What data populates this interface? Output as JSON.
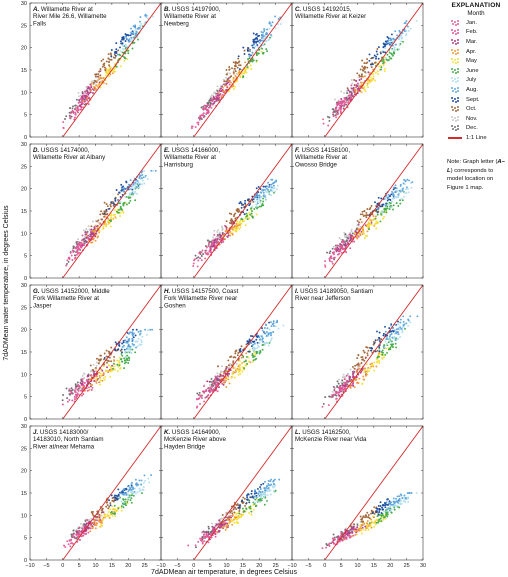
{
  "legend": {
    "heading": "EXPLANATION",
    "subheading": "Month",
    "months": [
      {
        "label": "Jan.",
        "color": "#e8609a"
      },
      {
        "label": "Feb.",
        "color": "#e2559a"
      },
      {
        "label": "Mar.",
        "color": "#b0418a"
      },
      {
        "label": "Apr.",
        "color": "#f29a3a"
      },
      {
        "label": "May",
        "color": "#f5e03a"
      },
      {
        "label": "June",
        "color": "#46ad4a"
      },
      {
        "label": "July",
        "color": "#b3dff2"
      },
      {
        "label": "Aug.",
        "color": "#62a8dc"
      },
      {
        "label": "Sept.",
        "color": "#1f4fa0"
      },
      {
        "label": "Oct.",
        "color": "#a56a3c"
      },
      {
        "label": "Nov.",
        "color": "#c9c9c9"
      },
      {
        "label": "Dec.",
        "color": "#6f6f6f"
      }
    ],
    "line_label": "1:1 Line",
    "line_color": "#d42a2a"
  },
  "note": {
    "prefix": "Note: Graph letter (",
    "letters": "A–L",
    "suffix": ") corresponds to model location on Figure 1 map."
  },
  "axes": {
    "xlabel": "7dADMean air temperature, in degrees Celsius",
    "ylabel": "7dADMean water temperature, in degrees Celsius",
    "x_ticks": [
      "−10",
      "−5",
      "0",
      "5",
      "10",
      "15",
      "20",
      "25"
    ],
    "x_ticks_last": [
      "−10",
      "−5",
      "0",
      "5",
      "10",
      "15",
      "20",
      "25",
      "30"
    ],
    "y_ticks": [
      "0",
      "5",
      "10",
      "15",
      "20",
      "25",
      "30"
    ]
  },
  "chart_data": {
    "type": "scatter",
    "xlim": [
      -10,
      30
    ],
    "ylim": [
      0,
      30
    ],
    "reference_line": "1:1",
    "panels": [
      {
        "letter": "A.",
        "title": [
          " Willamette River at",
          "River Mile 26.6, Willamette",
          "Falls"
        ],
        "fit": {
          "a": 3.0,
          "b": 0.86,
          "spread": 1.6
        },
        "y_range": [
          2,
          28
        ]
      },
      {
        "letter": "B.",
        "title": [
          " USGS 14197900,",
          "Willamette River at",
          "Newberg"
        ],
        "fit": {
          "a": 3.2,
          "b": 0.82,
          "spread": 1.7
        },
        "y_range": [
          2,
          27
        ]
      },
      {
        "letter": "C.",
        "title": [
          " USGS 14192015,",
          "Willamette River at Keizer"
        ],
        "fit": {
          "a": 3.4,
          "b": 0.78,
          "spread": 1.8
        },
        "y_range": [
          2,
          26
        ]
      },
      {
        "letter": "D.",
        "title": [
          " USGS 14174000,",
          "Willamette River at Albany"
        ],
        "fit": {
          "a": 3.6,
          "b": 0.72,
          "spread": 1.7
        },
        "y_range": [
          2,
          24
        ]
      },
      {
        "letter": "E.",
        "title": [
          " USGS 14166000,",
          "Willamette River at",
          "Harrisburg"
        ],
        "fit": {
          "a": 3.8,
          "b": 0.65,
          "spread": 1.6
        },
        "y_range": [
          2,
          22
        ]
      },
      {
        "letter": "F.",
        "title": [
          " USGS 14158100,",
          "Willamette River at",
          "Owosso Bridge"
        ],
        "fit": {
          "a": 4.0,
          "b": 0.62,
          "spread": 1.6
        },
        "y_range": [
          2,
          22
        ]
      },
      {
        "letter": "G.",
        "title": [
          " USGS 14152000, Middle",
          "Fork Willamette River at",
          "Jasper"
        ],
        "fit": {
          "a": 4.5,
          "b": 0.52,
          "spread": 1.9
        },
        "y_range": [
          3,
          20
        ]
      },
      {
        "letter": "H.",
        "title": [
          " USGS 14157500, Coast",
          "Fork Willamette River near",
          "Goshen"
        ],
        "fit": {
          "a": 4.0,
          "b": 0.6,
          "spread": 1.8
        },
        "y_range": [
          2,
          22
        ]
      },
      {
        "letter": "I.",
        "title": [
          " USGS 14189050, Santiam",
          "River near Jefferson"
        ],
        "fit": {
          "a": 3.8,
          "b": 0.65,
          "spread": 1.9
        },
        "y_range": [
          2,
          23
        ]
      },
      {
        "letter": "J.",
        "title": [
          " USGS 14183000/",
          "14183010, North Santiam",
          "River at/near Mehama"
        ],
        "fit": {
          "a": 3.5,
          "b": 0.52,
          "spread": 1.4
        },
        "y_range": [
          2,
          19
        ]
      },
      {
        "letter": "K.",
        "title": [
          " USGS 14164900,",
          "McKenzie River above",
          "Hayden Bridge"
        ],
        "fit": {
          "a": 3.6,
          "b": 0.5,
          "spread": 1.3
        },
        "y_range": [
          2,
          18
        ]
      },
      {
        "letter": "L.",
        "title": [
          " USGS 14162500,",
          "McKenzie River near Vida"
        ],
        "fit": {
          "a": 3.2,
          "b": 0.4,
          "spread": 1.1
        },
        "y_range": [
          2,
          15
        ]
      }
    ]
  }
}
